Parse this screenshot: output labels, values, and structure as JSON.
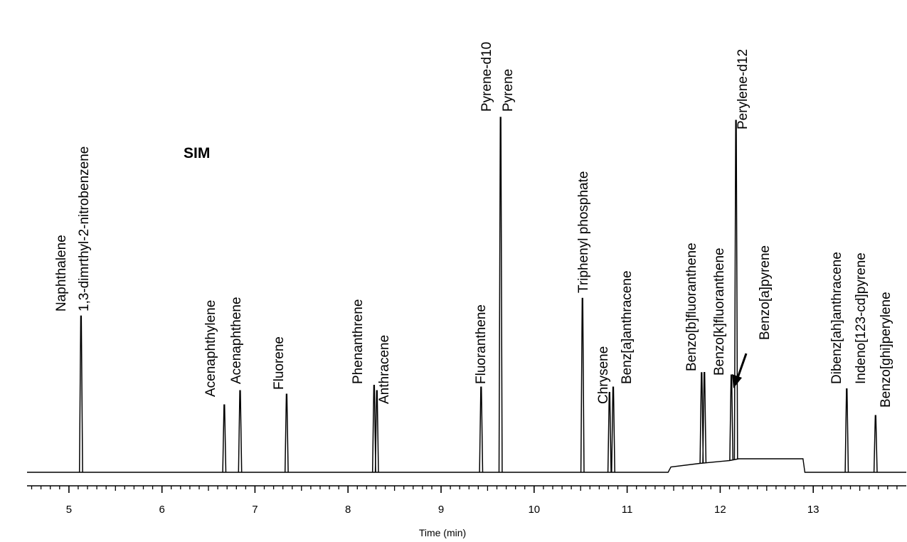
{
  "chart_data": {
    "type": "line",
    "title": "",
    "xlabel": "Time (min)",
    "ylabel": "",
    "mode_label": "SIM",
    "xlim": [
      4.55,
      14.0
    ],
    "ylim": [
      0,
      100
    ],
    "x_ticks": [
      5,
      6,
      7,
      8,
      9,
      10,
      11,
      12,
      13
    ],
    "x_tick_labels": [
      "5",
      "6",
      "7",
      "8",
      "9",
      "10",
      "11",
      "12",
      "13"
    ],
    "grid": false,
    "baseline": [
      [
        4.55,
        0
      ],
      [
        11.44,
        0
      ],
      [
        11.47,
        1.5
      ],
      [
        11.78,
        2.5
      ],
      [
        12.1,
        3.3
      ],
      [
        12.2,
        3.8
      ],
      [
        12.89,
        3.8
      ],
      [
        12.91,
        0
      ],
      [
        14.0,
        0
      ]
    ],
    "peaks": [
      {
        "name": "Naphthalene",
        "rt": 5.13,
        "height": 44
      },
      {
        "name": "1,3-dimrthyl-2-nitrobenzene",
        "rt": 5.13,
        "height": 44
      },
      {
        "name": "Acenaphthylene",
        "rt": 6.67,
        "height": 19
      },
      {
        "name": "Acenaphthene",
        "rt": 6.84,
        "height": 23
      },
      {
        "name": "Fluorene",
        "rt": 7.34,
        "height": 22
      },
      {
        "name": "Phenanthrene",
        "rt": 8.28,
        "height": 24.5
      },
      {
        "name": "Anthracene",
        "rt": 8.31,
        "height": 23
      },
      {
        "name": "Fluoranthene",
        "rt": 9.43,
        "height": 24
      },
      {
        "name": "Pyrene-d10",
        "rt": 9.64,
        "height": 100
      },
      {
        "name": "Pyrene",
        "rt": 9.64,
        "height": 100
      },
      {
        "name": "Triphenyl phosphate",
        "rt": 10.52,
        "height": 49
      },
      {
        "name": "Chrysene",
        "rt": 10.81,
        "height": 22.5
      },
      {
        "name": "Benz[a]anthracene",
        "rt": 10.85,
        "height": 24
      },
      {
        "name": "Benzo[b]fluoranthene",
        "rt": 11.8,
        "height": 25.5
      },
      {
        "name": "Benzo[k]fluoranthene",
        "rt": 11.83,
        "height": 25.5
      },
      {
        "name": "Benzo[a]pyrene",
        "rt": 12.12,
        "height": 24
      },
      {
        "name": "Perylene-d12",
        "rt": 12.17,
        "height": 95.5
      },
      {
        "name": "Dibenz[ah]anthracene",
        "rt": 13.36,
        "height": 23.5
      },
      {
        "name": "Indeno[123-cd]pyrene",
        "rt": 13.36,
        "height": 23.5
      },
      {
        "name": "Benzo[ghi]perylene",
        "rt": 13.67,
        "height": 16
      }
    ]
  }
}
